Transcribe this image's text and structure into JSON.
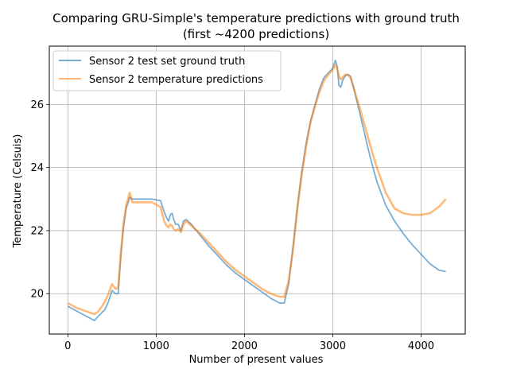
{
  "chart_data": {
    "type": "line",
    "title": "Comparing GRU-Simple's temperature predictions with ground truth",
    "subtitle": "(first ~4200 predictions)",
    "xlabel": "Number of present values",
    "ylabel": "Temperature (Celsuis)",
    "xlim": [
      -210,
      4500
    ],
    "ylim": [
      18.72,
      27.85
    ],
    "xticks": [
      0,
      1000,
      2000,
      3000,
      4000
    ],
    "yticks": [
      20,
      22,
      24,
      26
    ],
    "grid": true,
    "legend_position": "top-left",
    "series": [
      {
        "name": "Sensor 2 test set ground truth",
        "color": "#1f77b4",
        "x": [
          0,
          100,
          200,
          300,
          350,
          420,
          460,
          500,
          540,
          570,
          600,
          630,
          660,
          700,
          730,
          770,
          850,
          950,
          1050,
          1090,
          1120,
          1140,
          1160,
          1180,
          1200,
          1220,
          1250,
          1280,
          1310,
          1340,
          1400,
          1500,
          1600,
          1700,
          1800,
          1900,
          2000,
          2100,
          2200,
          2300,
          2400,
          2450,
          2500,
          2550,
          2600,
          2650,
          2700,
          2750,
          2800,
          2850,
          2900,
          2950,
          3000,
          3030,
          3050,
          3070,
          3090,
          3110,
          3140,
          3170,
          3200,
          3230,
          3260,
          3300,
          3350,
          3400,
          3450,
          3500,
          3600,
          3700,
          3800,
          3900,
          4000,
          4100,
          4200,
          4280
        ],
        "values": [
          19.6,
          19.45,
          19.3,
          19.15,
          19.3,
          19.5,
          19.75,
          20.1,
          20.0,
          20.0,
          21.2,
          22.1,
          22.7,
          23.05,
          23.0,
          23.0,
          23.0,
          23.0,
          22.95,
          22.6,
          22.4,
          22.3,
          22.5,
          22.55,
          22.35,
          22.2,
          22.2,
          22.0,
          22.3,
          22.35,
          22.2,
          21.85,
          21.5,
          21.2,
          20.9,
          20.65,
          20.45,
          20.25,
          20.05,
          19.85,
          19.7,
          19.7,
          20.3,
          21.5,
          22.8,
          23.9,
          24.8,
          25.5,
          26.0,
          26.5,
          26.85,
          27.0,
          27.15,
          27.4,
          27.2,
          26.6,
          26.55,
          26.75,
          26.9,
          26.95,
          26.9,
          26.6,
          26.25,
          25.8,
          25.2,
          24.6,
          24.05,
          23.55,
          22.8,
          22.3,
          21.9,
          21.55,
          21.25,
          20.95,
          20.75,
          20.7
        ]
      },
      {
        "name": "Sensor 2 temperature predictions",
        "color": "#ff7f0e",
        "x": [
          0,
          100,
          200,
          300,
          350,
          420,
          460,
          500,
          540,
          570,
          600,
          630,
          660,
          700,
          730,
          770,
          850,
          950,
          1050,
          1090,
          1120,
          1140,
          1160,
          1180,
          1200,
          1220,
          1250,
          1280,
          1310,
          1340,
          1400,
          1500,
          1600,
          1700,
          1800,
          1900,
          2000,
          2100,
          2200,
          2300,
          2400,
          2450,
          2500,
          2550,
          2600,
          2650,
          2700,
          2750,
          2800,
          2850,
          2900,
          2950,
          3000,
          3030,
          3050,
          3070,
          3090,
          3110,
          3140,
          3170,
          3200,
          3230,
          3260,
          3300,
          3350,
          3400,
          3450,
          3500,
          3600,
          3700,
          3800,
          3900,
          4000,
          4100,
          4200,
          4280
        ],
        "values": [
          19.7,
          19.55,
          19.45,
          19.35,
          19.45,
          19.75,
          20.0,
          20.3,
          20.15,
          20.2,
          21.3,
          22.2,
          22.8,
          23.2,
          22.9,
          22.9,
          22.9,
          22.9,
          22.75,
          22.3,
          22.15,
          22.1,
          22.2,
          22.15,
          22.05,
          22.0,
          22.05,
          21.95,
          22.2,
          22.3,
          22.15,
          21.9,
          21.6,
          21.3,
          21.0,
          20.75,
          20.55,
          20.35,
          20.15,
          20.0,
          19.9,
          19.9,
          20.4,
          21.4,
          22.7,
          23.8,
          24.7,
          25.45,
          25.95,
          26.4,
          26.75,
          26.95,
          27.1,
          27.25,
          27.15,
          26.9,
          26.8,
          26.85,
          26.95,
          26.95,
          26.85,
          26.6,
          26.3,
          25.95,
          25.45,
          24.95,
          24.45,
          24.0,
          23.2,
          22.7,
          22.55,
          22.5,
          22.5,
          22.55,
          22.75,
          23.0
        ]
      }
    ]
  }
}
